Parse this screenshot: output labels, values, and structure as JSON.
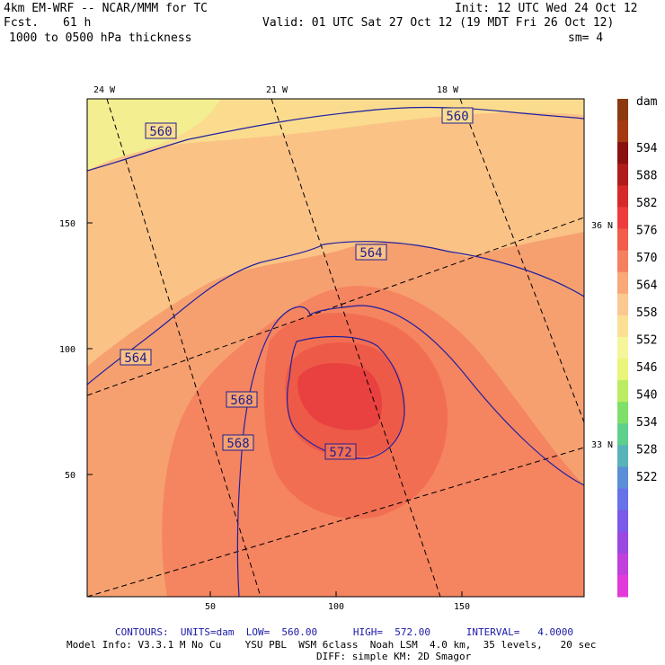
{
  "header": {
    "model": "4km EM-WRF -- NCAR/MMM for TC",
    "forecast_label": "Fcst.",
    "forecast_hours": "61 h",
    "field": "1000 to 0500 hPa thickness",
    "init": "Init: 12 UTC Wed 24 Oct 12",
    "valid": "Valid: 01 UTC Sat 27 Oct 12 (19 MDT Fri 26 Oct 12)",
    "smoothing": "sm= 4"
  },
  "map": {
    "longitude_labels": [
      "24 W",
      "21 W",
      "18 W"
    ],
    "latitude_labels": [
      "36 N",
      "33 N"
    ],
    "y_ticks": [
      "150",
      "100",
      "50"
    ],
    "x_ticks": [
      "50",
      "100",
      "150"
    ],
    "contour_labels": [
      "560",
      "560",
      "564",
      "564",
      "568",
      "568",
      "572"
    ]
  },
  "colorbar": {
    "unit": "dam",
    "levels": [
      "594",
      "588",
      "582",
      "576",
      "570",
      "564",
      "558",
      "552",
      "546",
      "540",
      "534",
      "528",
      "522"
    ],
    "colors": [
      "#8b3a0f",
      "#a33a12",
      "#8b1010",
      "#b01c1c",
      "#d62a2a",
      "#ee3c3c",
      "#f25c4a",
      "#f58060",
      "#f9a878",
      "#fac890",
      "#fbe094",
      "#f5f59a",
      "#e9f57a",
      "#bbec62",
      "#7ee068",
      "#5fcf8c",
      "#58b3b8",
      "#5a8fd8",
      "#6872e8",
      "#7a5ae8",
      "#9a48e0",
      "#c040dc",
      "#e23ad8"
    ]
  },
  "footer": {
    "contours": "CONTOURS:  UNITS=dam  LOW=  560.00      HIGH=  572.00      INTERVAL=   4.0000",
    "model_info": "Model Info: V3.3.1 M No Cu    YSU PBL  WSM 6class  Noah LSM  4.0 km,  35 levels,   20 sec",
    "diff": "DIFF: simple KM: 2D Smagor"
  }
}
